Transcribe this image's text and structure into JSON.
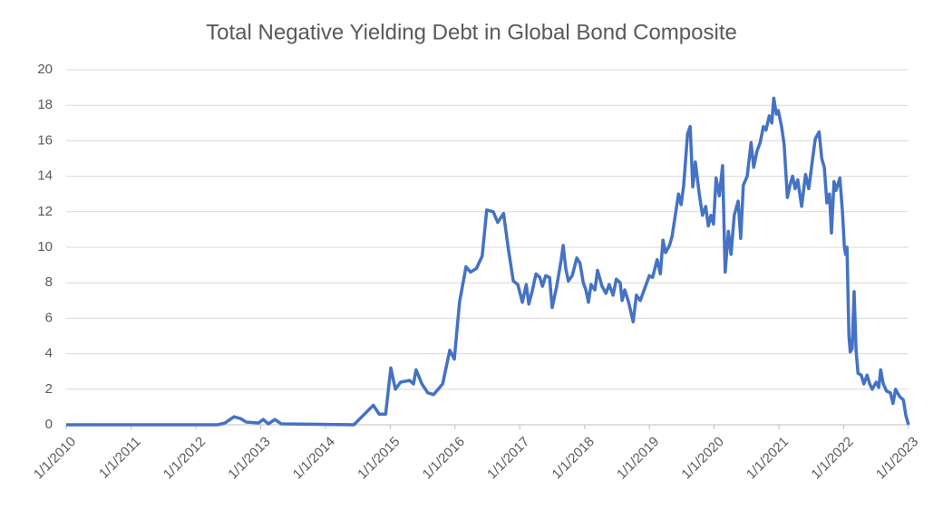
{
  "chart_data": {
    "type": "line",
    "title": "Total Negative Yielding Debt in Global Bond Composite",
    "xlim": [
      2010,
      2023
    ],
    "xticks": [
      {
        "value": 2010,
        "label": "1/1/2010"
      },
      {
        "value": 2011,
        "label": "1/1/2011"
      },
      {
        "value": 2012,
        "label": "1/1/2012"
      },
      {
        "value": 2013,
        "label": "1/1/2013"
      },
      {
        "value": 2014,
        "label": "1/1/2014"
      },
      {
        "value": 2015,
        "label": "1/1/2015"
      },
      {
        "value": 2016,
        "label": "1/1/2016"
      },
      {
        "value": 2017,
        "label": "1/1/2017"
      },
      {
        "value": 2018,
        "label": "1/1/2018"
      },
      {
        "value": 2019,
        "label": "1/1/2019"
      },
      {
        "value": 2020,
        "label": "1/1/2020"
      },
      {
        "value": 2021,
        "label": "1/1/2021"
      },
      {
        "value": 2022,
        "label": "1/1/2022"
      },
      {
        "value": 2023,
        "label": "1/1/2023"
      }
    ],
    "ylim": [
      0,
      20
    ],
    "yticks": [
      0,
      2,
      4,
      6,
      8,
      10,
      12,
      14,
      16,
      18,
      20
    ],
    "grid": true,
    "x": [
      2010,
      2012.34,
      2012.45,
      2012.59,
      2012.69,
      2012.78,
      2012.97,
      2013.04,
      2013.12,
      2013.22,
      2013.32,
      2014.44,
      2014.74,
      2014.83,
      2014.93,
      2015.01,
      2015.08,
      2015.16,
      2015.3,
      2015.36,
      2015.4,
      2015.49,
      2015.58,
      2015.67,
      2015.81,
      2015.92,
      2015.99,
      2016.07,
      2016.17,
      2016.24,
      2016.33,
      2016.42,
      2016.49,
      2016.59,
      2016.66,
      2016.75,
      2016.82,
      2016.9,
      2016.97,
      2017.04,
      2017.1,
      2017.14,
      2017.19,
      2017.25,
      2017.31,
      2017.35,
      2017.4,
      2017.46,
      2017.5,
      2017.57,
      2017.64,
      2017.67,
      2017.71,
      2017.75,
      2017.81,
      2017.88,
      2017.93,
      2017.98,
      2018.02,
      2018.06,
      2018.1,
      2018.16,
      2018.2,
      2018.27,
      2018.33,
      2018.38,
      2018.44,
      2018.49,
      2018.55,
      2018.58,
      2018.62,
      2018.68,
      2018.75,
      2018.8,
      2018.86,
      2018.94,
      2019.0,
      2019.05,
      2019.12,
      2019.17,
      2019.21,
      2019.25,
      2019.31,
      2019.35,
      2019.4,
      2019.45,
      2019.49,
      2019.53,
      2019.59,
      2019.63,
      2019.67,
      2019.71,
      2019.77,
      2019.82,
      2019.87,
      2019.91,
      2019.95,
      2019.99,
      2020.03,
      2020.08,
      2020.13,
      2020.17,
      2020.22,
      2020.26,
      2020.31,
      2020.37,
      2020.41,
      2020.45,
      2020.51,
      2020.57,
      2020.61,
      2020.66,
      2020.71,
      2020.76,
      2020.8,
      2020.85,
      2020.89,
      2020.92,
      2020.96,
      2020.99,
      2021.04,
      2021.08,
      2021.13,
      2021.17,
      2021.21,
      2021.25,
      2021.29,
      2021.35,
      2021.41,
      2021.46,
      2021.52,
      2021.56,
      2021.62,
      2021.66,
      2021.7,
      2021.74,
      2021.78,
      2021.81,
      2021.85,
      2021.88,
      2021.94,
      2021.98,
      2022.01,
      2022.03,
      2022.05,
      2022.08,
      2022.1,
      2022.13,
      2022.16,
      2022.19,
      2022.22,
      2022.27,
      2022.31,
      2022.36,
      2022.4,
      2022.44,
      2022.5,
      2022.54,
      2022.57,
      2022.61,
      2022.66,
      2022.72,
      2022.76,
      2022.8,
      2022.86,
      2022.92,
      2022.96,
      2023.0
    ],
    "series": [
      {
        "color": "#4472c4",
        "values": [
          0,
          0,
          0.1,
          0.45,
          0.35,
          0.15,
          0.1,
          0.3,
          0.05,
          0.3,
          0.05,
          0,
          1.1,
          0.6,
          0.6,
          3.2,
          2.0,
          2.4,
          2.5,
          2.3,
          3.1,
          2.3,
          1.8,
          1.7,
          2.3,
          4.2,
          3.7,
          6.9,
          8.9,
          8.6,
          8.8,
          9.5,
          12.1,
          12.0,
          11.4,
          11.9,
          10.0,
          8.1,
          7.9,
          6.9,
          7.9,
          6.8,
          7.5,
          8.5,
          8.3,
          7.8,
          8.4,
          8.3,
          6.6,
          7.8,
          9.3,
          10.1,
          8.8,
          8.1,
          8.4,
          9.4,
          9.1,
          8.0,
          7.6,
          6.9,
          7.9,
          7.6,
          8.7,
          7.8,
          7.4,
          7.9,
          7.3,
          8.2,
          8.0,
          7.0,
          7.6,
          6.9,
          5.8,
          7.3,
          7.0,
          7.8,
          8.4,
          8.3,
          9.3,
          8.5,
          10.4,
          9.7,
          10.1,
          10.6,
          11.8,
          13.0,
          12.4,
          13.5,
          16.4,
          16.8,
          13.4,
          14.8,
          13.0,
          11.8,
          12.3,
          11.2,
          11.8,
          11.3,
          13.9,
          12.9,
          14.6,
          8.6,
          10.9,
          9.6,
          11.8,
          12.6,
          10.5,
          13.5,
          14.0,
          15.9,
          14.5,
          15.4,
          15.9,
          16.8,
          16.6,
          17.4,
          17.0,
          18.4,
          17.5,
          17.7,
          16.8,
          15.8,
          12.8,
          13.5,
          14.0,
          13.3,
          13.8,
          12.3,
          14.1,
          13.3,
          15.0,
          16.1,
          16.5,
          15.0,
          14.5,
          12.5,
          13.0,
          10.8,
          13.7,
          13.2,
          13.9,
          12.0,
          10.0,
          9.6,
          10.0,
          5.0,
          4.1,
          4.3,
          7.5,
          4.2,
          2.9,
          2.8,
          2.3,
          2.8,
          2.3,
          2.0,
          2.4,
          2.1,
          3.1,
          2.3,
          1.9,
          1.8,
          1.2,
          2.0,
          1.6,
          1.4,
          0.5,
          0
        ]
      }
    ]
  }
}
